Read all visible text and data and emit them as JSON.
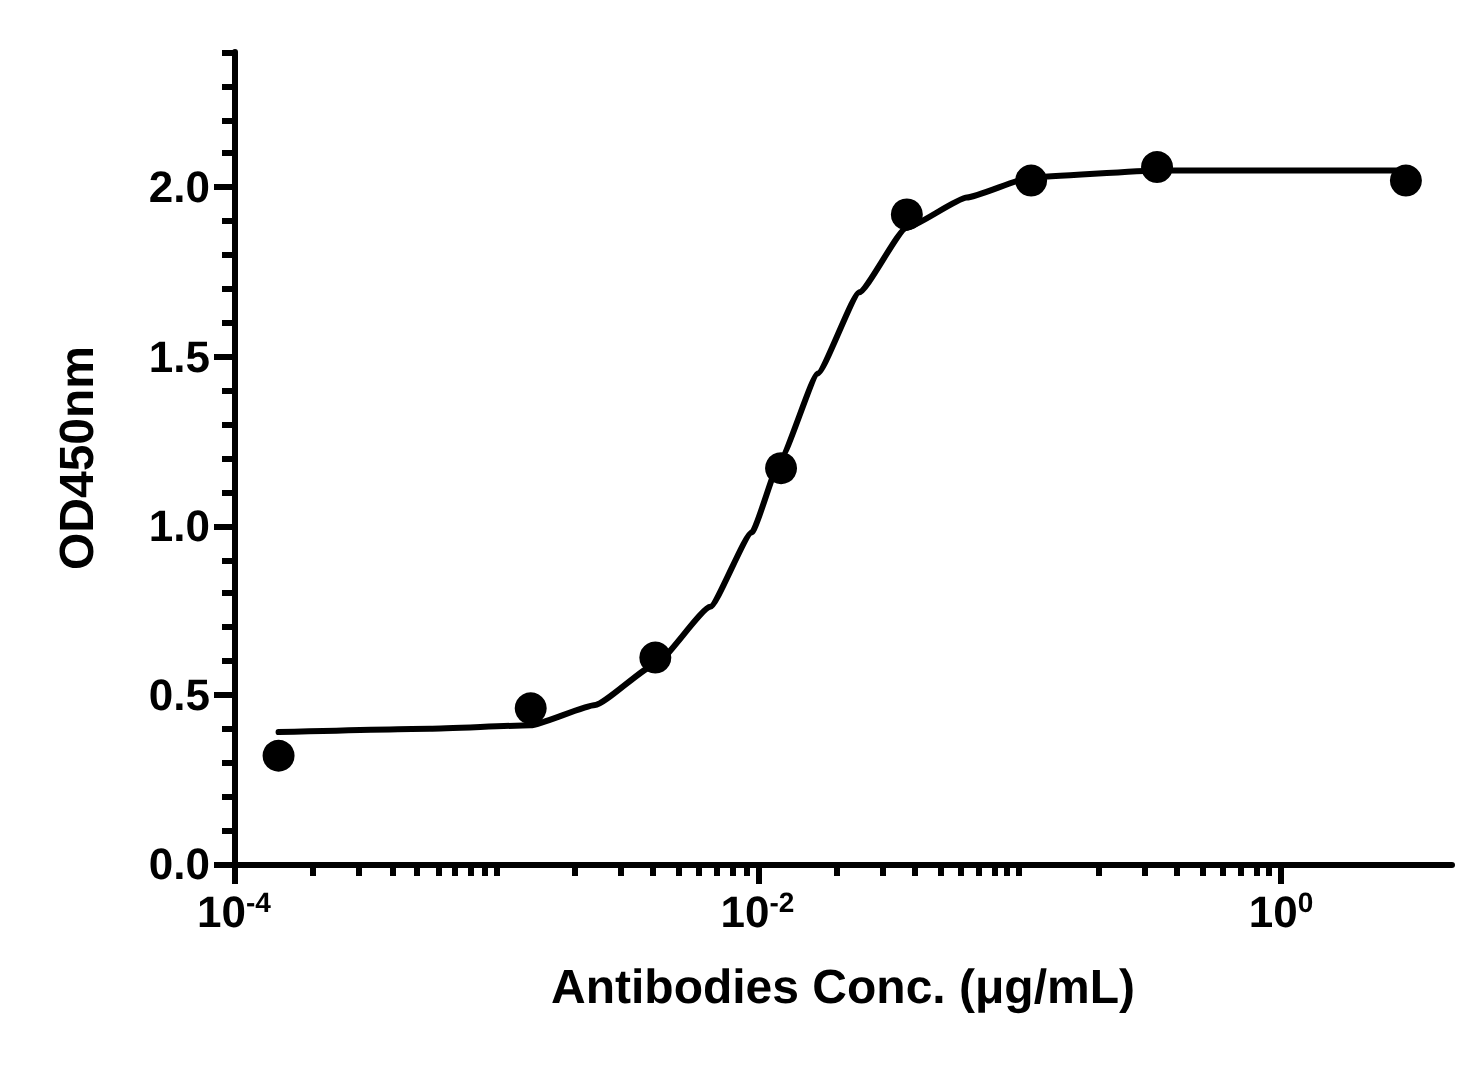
{
  "chart_data": {
    "type": "scatter",
    "xlabel": "Antibodies Conc. (μg/mL)",
    "ylabel": "OD450nm",
    "log": "x",
    "xlim": [
      0.0001,
      4.5
    ],
    "xticks": [
      {
        "value": 0.0001,
        "label": "10$^{-4}$"
      },
      {
        "value": 0.0002,
        "label": null
      },
      {
        "value": 0.0003,
        "label": null
      },
      {
        "value": 0.0004,
        "label": null
      },
      {
        "value": 0.0005,
        "label": null
      },
      {
        "value": 0.0006,
        "label": null
      },
      {
        "value": 0.0007,
        "label": null
      },
      {
        "value": 0.0008,
        "label": null
      },
      {
        "value": 0.0009,
        "label": null
      },
      {
        "value": 0.001,
        "label": null
      },
      {
        "value": 0.002,
        "label": null
      },
      {
        "value": 0.003,
        "label": null
      },
      {
        "value": 0.004,
        "label": null
      },
      {
        "value": 0.005,
        "label": null
      },
      {
        "value": 0.006,
        "label": null
      },
      {
        "value": 0.007,
        "label": null
      },
      {
        "value": 0.008,
        "label": null
      },
      {
        "value": 0.009,
        "label": null
      },
      {
        "value": 0.01,
        "label": "10$^{-2}$"
      },
      {
        "value": 0.02,
        "label": null
      },
      {
        "value": 0.03,
        "label": null
      },
      {
        "value": 0.04,
        "label": null
      },
      {
        "value": 0.05,
        "label": null
      },
      {
        "value": 0.06,
        "label": null
      },
      {
        "value": 0.07,
        "label": null
      },
      {
        "value": 0.08,
        "label": null
      },
      {
        "value": 0.09,
        "label": null
      },
      {
        "value": 0.1,
        "label": null
      },
      {
        "value": 0.2,
        "label": null
      },
      {
        "value": 0.3,
        "label": null
      },
      {
        "value": 0.4,
        "label": null
      },
      {
        "value": 0.5,
        "label": null
      },
      {
        "value": 0.6,
        "label": null
      },
      {
        "value": 0.7,
        "label": null
      },
      {
        "value": 0.8,
        "label": null
      },
      {
        "value": 0.9,
        "label": null
      },
      {
        "value": 1,
        "label": "10$^{0}$"
      }
    ],
    "ylim": [
      0,
      2.4
    ],
    "yticks": [
      {
        "value": 0,
        "label": "0.0"
      },
      {
        "value": 0.1,
        "label": null
      },
      {
        "value": 0.2,
        "label": null
      },
      {
        "value": 0.3,
        "label": null
      },
      {
        "value": 0.4,
        "label": null
      },
      {
        "value": 0.5,
        "label": "0.5"
      },
      {
        "value": 0.6,
        "label": null
      },
      {
        "value": 0.7,
        "label": null
      },
      {
        "value": 0.8,
        "label": null
      },
      {
        "value": 0.9,
        "label": null
      },
      {
        "value": 1,
        "label": "1.0"
      },
      {
        "value": 1.1,
        "label": null
      },
      {
        "value": 1.2,
        "label": null
      },
      {
        "value": 1.3,
        "label": null
      },
      {
        "value": 1.4,
        "label": null
      },
      {
        "value": 1.5,
        "label": "1.5"
      },
      {
        "value": 1.6,
        "label": null
      },
      {
        "value": 1.7,
        "label": null
      },
      {
        "value": 1.8,
        "label": null
      },
      {
        "value": 1.9,
        "label": null
      },
      {
        "value": 2,
        "label": "2.0"
      },
      {
        "value": 2.1,
        "label": null
      },
      {
        "value": 2.2,
        "label": null
      },
      {
        "value": 2.3,
        "label": null
      },
      {
        "value": 2.4,
        "label": null
      }
    ],
    "series": [
      {
        "color": "#000000",
        "marker": "circle",
        "x": [
          0.000148,
          0.00136,
          0.00407,
          0.0123,
          0.0372,
          0.111,
          0.336,
          3.0
        ],
        "values": [
          0.32,
          0.46,
          0.61,
          1.17,
          1.92,
          2.02,
          2.06,
          2.02
        ]
      },
      {
        "type": "line",
        "color": "#000000",
        "marker": "none",
        "line_style": "solid",
        "x": [
          0.000148,
          0.00056,
          0.00136,
          0.0024,
          0.00407,
          0.0066,
          0.0095,
          0.0123,
          0.017,
          0.0245,
          0.037,
          0.063,
          0.111,
          0.336,
          3.0
        ],
        "values": [
          0.39,
          0.4,
          0.41,
          0.47,
          0.59,
          0.76,
          0.98,
          1.2,
          1.45,
          1.69,
          1.88,
          1.97,
          2.03,
          2.05,
          2.05
        ]
      }
    ]
  }
}
